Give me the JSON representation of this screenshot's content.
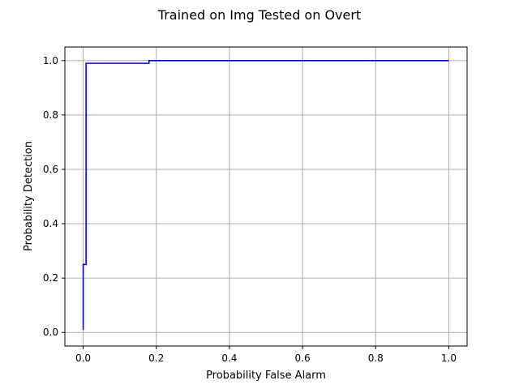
{
  "chart_data": {
    "type": "line",
    "title": "Trained on Img Tested on Overt",
    "xlabel": "Probability False Alarm",
    "ylabel": "Probability Detection",
    "xlim": [
      -0.05,
      1.05
    ],
    "ylim": [
      -0.05,
      1.05
    ],
    "xticks": [
      0.0,
      0.2,
      0.4,
      0.6,
      0.8,
      1.0
    ],
    "yticks": [
      0.0,
      0.2,
      0.4,
      0.6,
      0.8,
      1.0
    ],
    "xtick_labels": [
      "0.0",
      "0.2",
      "0.4",
      "0.6",
      "0.8",
      "1.0"
    ],
    "ytick_labels": [
      "0.0",
      "0.2",
      "0.4",
      "0.6",
      "0.8",
      "1.0"
    ],
    "grid": true,
    "series": [
      {
        "color": "#0000ff",
        "x": [
          0.0,
          0.0,
          0.005,
          0.005,
          0.008,
          0.008,
          0.18,
          0.18,
          1.0
        ],
        "y": [
          0.01,
          0.25,
          0.25,
          0.25,
          0.25,
          0.99,
          0.99,
          1.0,
          1.0
        ]
      }
    ]
  }
}
